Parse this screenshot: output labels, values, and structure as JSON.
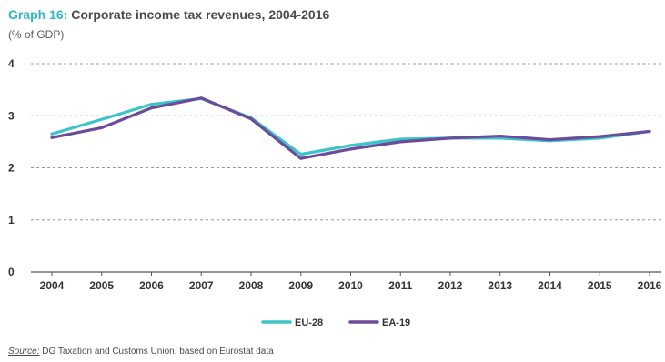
{
  "header": {
    "graph_label": "Graph 16:",
    "title": "Corporate income tax revenues, 2004-2016",
    "unit": "(% of GDP)"
  },
  "footer": {
    "source_label": "Source:",
    "source_text": "DG Taxation and Customs Union, based on Eurostat data"
  },
  "colors": {
    "EU-28": "#3cc4c9",
    "EA-19": "#6b4b9a",
    "grid": "#999999",
    "axis": "#555555"
  },
  "chart_data": {
    "type": "line",
    "title": "Corporate income tax revenues, 2004-2016",
    "ylabel": "(% of GDP)",
    "xlabel": "",
    "x": [
      "2004",
      "2005",
      "2006",
      "2007",
      "2008",
      "2009",
      "2010",
      "2011",
      "2012",
      "2013",
      "2014",
      "2015",
      "2016"
    ],
    "ylim": [
      0,
      4
    ],
    "yticks": [
      0,
      1,
      2,
      3,
      4
    ],
    "grid": true,
    "legend": "bottom",
    "series": [
      {
        "name": "EU-28",
        "values": [
          2.65,
          2.93,
          3.22,
          3.33,
          2.96,
          2.26,
          2.43,
          2.55,
          2.57,
          2.57,
          2.52,
          2.57,
          2.7
        ]
      },
      {
        "name": "EA-19",
        "values": [
          2.58,
          2.77,
          3.15,
          3.34,
          2.94,
          2.18,
          2.36,
          2.5,
          2.57,
          2.61,
          2.54,
          2.6,
          2.7
        ]
      }
    ]
  }
}
